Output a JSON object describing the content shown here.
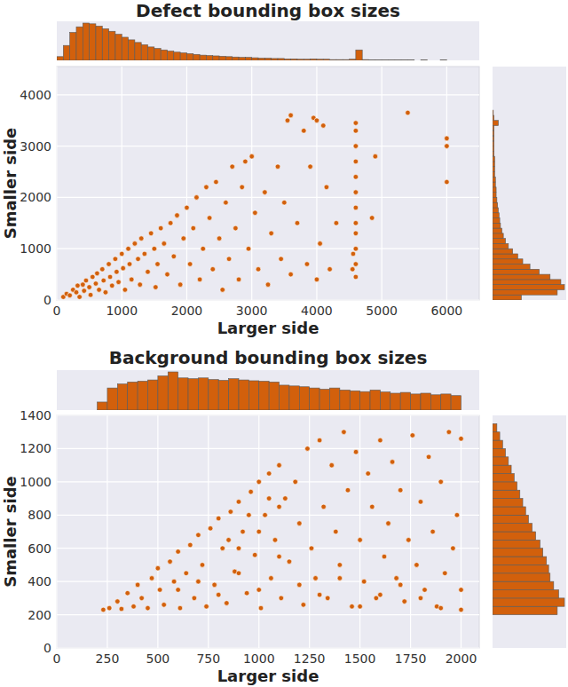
{
  "chart_data": [
    {
      "type": "scatter",
      "title": "Defect bounding box sizes",
      "x_label": "Larger side",
      "y_label": "Smaller side",
      "color": "#d2600c",
      "marker": "circle",
      "grid": true,
      "xlim": [
        0,
        6500
      ],
      "ylim": [
        0,
        4550
      ],
      "xticks": [
        0,
        1000,
        2000,
        3000,
        4000,
        5000,
        6000
      ],
      "yticks": [
        0,
        1000,
        2000,
        3000,
        4000
      ],
      "x": [
        100,
        150,
        200,
        250,
        300,
        320,
        350,
        400,
        420,
        450,
        500,
        520,
        550,
        600,
        620,
        650,
        700,
        720,
        750,
        800,
        820,
        850,
        900,
        920,
        950,
        1000,
        1020,
        1050,
        1100,
        1120,
        1150,
        1200,
        1250,
        1280,
        1300,
        1350,
        1400,
        1450,
        1500,
        1520,
        1550,
        1600,
        1650,
        1700,
        1750,
        1800,
        1850,
        1900,
        1950,
        2000,
        2050,
        2100,
        2150,
        2200,
        2250,
        2300,
        2350,
        2400,
        2450,
        2500,
        2550,
        2600,
        2650,
        2700,
        2750,
        2800,
        2850,
        2900,
        2950,
        3000,
        3050,
        3100,
        3200,
        3250,
        3300,
        3400,
        3450,
        3500,
        3550,
        3600,
        3700,
        3800,
        3850,
        3900,
        3950,
        4000,
        4050,
        4100,
        4150,
        4200,
        4300,
        4600,
        4600,
        4600,
        4600,
        4600,
        4600,
        4600,
        4600,
        4600,
        4600,
        4600,
        4600,
        4550,
        4560,
        4850,
        4900,
        5400,
        6000,
        6000,
        6000,
        3600,
        4000
      ],
      "y": [
        60,
        120,
        90,
        200,
        150,
        280,
        60,
        300,
        180,
        380,
        250,
        100,
        450,
        320,
        520,
        200,
        600,
        380,
        150,
        700,
        450,
        280,
        800,
        550,
        350,
        900,
        620,
        200,
        1000,
        700,
        400,
        1100,
        800,
        300,
        1200,
        900,
        550,
        1300,
        1000,
        250,
        700,
        1400,
        1100,
        500,
        1500,
        850,
        1650,
        300,
        1200,
        1800,
        700,
        1400,
        2000,
        400,
        1000,
        2200,
        1600,
        600,
        2300,
        1200,
        200,
        1900,
        800,
        2600,
        1400,
        400,
        2200,
        2700,
        1000,
        2800,
        1700,
        600,
        2100,
        300,
        1300,
        2600,
        800,
        1900,
        3500,
        500,
        1500,
        3300,
        700,
        2600,
        3550,
        400,
        1100,
        3400,
        2200,
        600,
        1500,
        450,
        700,
        1000,
        1300,
        1500,
        1800,
        2100,
        2400,
        2700,
        3000,
        3300,
        3450,
        600,
        900,
        1600,
        2800,
        3650,
        3150,
        3000,
        2300,
        3600,
        3500
      ],
      "x_hist": {
        "bins": [
          0,
          100,
          200,
          300,
          400,
          500,
          600,
          700,
          800,
          900,
          1000,
          1100,
          1200,
          1300,
          1400,
          1500,
          1600,
          1700,
          1800,
          1900,
          2000,
          2100,
          2200,
          2300,
          2400,
          2500,
          2600,
          2700,
          2800,
          2900,
          3000,
          3100,
          3200,
          3300,
          3400,
          3500,
          3600,
          3700,
          3800,
          3900,
          4000,
          4100,
          4200,
          4300,
          4400,
          4500,
          4600,
          4700,
          4800,
          4900,
          5000,
          5100,
          5200,
          5300,
          5400,
          5500,
          5600,
          5700,
          5800,
          5900,
          6000
        ],
        "counts": [
          10,
          40,
          75,
          90,
          100,
          98,
          92,
          85,
          78,
          70,
          62,
          55,
          48,
          42,
          36,
          32,
          28,
          25,
          22,
          20,
          18,
          16,
          14,
          13,
          12,
          11,
          10,
          9,
          8,
          8,
          7,
          6,
          6,
          5,
          5,
          4,
          4,
          3,
          3,
          4,
          3,
          3,
          2,
          2,
          2,
          3,
          28,
          2,
          1,
          1,
          1,
          1,
          1,
          1,
          1,
          0,
          1,
          0,
          0,
          1
        ]
      },
      "y_hist": {
        "bins": [
          0,
          100,
          200,
          300,
          400,
          500,
          600,
          700,
          800,
          900,
          1000,
          1100,
          1200,
          1300,
          1400,
          1500,
          1600,
          1700,
          1800,
          1900,
          2000,
          2100,
          2200,
          2300,
          2400,
          2500,
          2600,
          2700,
          2800,
          2900,
          3000,
          3100,
          3200,
          3300,
          3400,
          3500,
          3600,
          3700
        ],
        "counts": [
          40,
          90,
          100,
          95,
          80,
          65,
          52,
          42,
          35,
          28,
          22,
          18,
          15,
          13,
          11,
          10,
          9,
          8,
          7,
          6,
          5,
          5,
          4,
          4,
          3,
          3,
          3,
          3,
          2,
          2,
          2,
          2,
          2,
          2,
          8,
          2,
          1
        ]
      }
    },
    {
      "type": "scatter",
      "title": "Background bounding box sizes",
      "x_label": "Larger side",
      "y_label": "Smaller side",
      "color": "#d2600c",
      "marker": "circle",
      "grid": true,
      "xlim": [
        0,
        2090
      ],
      "ylim": [
        0,
        1400
      ],
      "xticks": [
        0,
        250,
        500,
        750,
        1000,
        1250,
        1500,
        1750,
        2000
      ],
      "yticks": [
        0,
        200,
        400,
        600,
        800,
        1000,
        1200,
        1400
      ],
      "x": [
        230,
        260,
        300,
        320,
        350,
        380,
        400,
        420,
        450,
        470,
        500,
        510,
        530,
        560,
        580,
        600,
        610,
        640,
        660,
        680,
        700,
        720,
        740,
        760,
        780,
        800,
        820,
        840,
        860,
        880,
        900,
        920,
        940,
        960,
        980,
        1000,
        1010,
        1030,
        1050,
        1060,
        1080,
        1100,
        1110,
        1130,
        1150,
        1180,
        1200,
        1220,
        1240,
        1260,
        1280,
        1300,
        1320,
        1340,
        1360,
        1380,
        1400,
        1420,
        1440,
        1460,
        1480,
        1500,
        1520,
        1540,
        1560,
        1580,
        1600,
        1620,
        1640,
        1660,
        1680,
        1700,
        1720,
        1740,
        1760,
        1780,
        1800,
        1820,
        1840,
        1860,
        1880,
        1900,
        1920,
        1940,
        1960,
        1980,
        2000,
        2000,
        600,
        700,
        800,
        900,
        1000,
        1100,
        1200,
        1300,
        1400,
        1500,
        1600,
        1700,
        1800,
        1900,
        2000,
        900,
        1000,
        1100,
        850,
        950,
        1050
      ],
      "y": [
        230,
        240,
        280,
        235,
        330,
        250,
        380,
        300,
        240,
        420,
        480,
        350,
        260,
        520,
        400,
        580,
        240,
        450,
        620,
        300,
        680,
        500,
        250,
        720,
        380,
        780,
        600,
        270,
        820,
        460,
        880,
        700,
        330,
        940,
        560,
        1000,
        240,
        800,
        1050,
        420,
        650,
        1100,
        300,
        900,
        520,
        1000,
        750,
        260,
        1200,
        600,
        420,
        1250,
        850,
        300,
        1100,
        700,
        500,
        1300,
        950,
        250,
        1180,
        650,
        400,
        1050,
        850,
        300,
        1250,
        550,
        750,
        1120,
        420,
        950,
        280,
        650,
        1280,
        500,
        880,
        350,
        1150,
        700,
        250,
        1000,
        450,
        1300,
        600,
        800,
        1260,
        350,
        350,
        400,
        320,
        450,
        350,
        550,
        380,
        320,
        420,
        250,
        320,
        380,
        300,
        240,
        230,
        600,
        700,
        850,
        650,
        800,
        900
      ],
      "x_hist": {
        "bins": [
          200,
          250,
          300,
          350,
          400,
          450,
          500,
          550,
          600,
          650,
          700,
          750,
          800,
          850,
          900,
          950,
          1000,
          1050,
          1100,
          1150,
          1200,
          1250,
          1300,
          1350,
          1400,
          1450,
          1500,
          1550,
          1600,
          1650,
          1700,
          1750,
          1800,
          1850,
          1900,
          1950,
          2000
        ],
        "counts": [
          20,
          55,
          65,
          70,
          72,
          75,
          85,
          95,
          80,
          78,
          80,
          76,
          74,
          78,
          75,
          73,
          72,
          70,
          62,
          60,
          58,
          55,
          52,
          55,
          50,
          48,
          46,
          50,
          45,
          42,
          44,
          40,
          42,
          38,
          40,
          36
        ]
      },
      "y_hist": {
        "bins": [
          200,
          250,
          300,
          350,
          400,
          450,
          500,
          550,
          600,
          650,
          700,
          750,
          800,
          850,
          900,
          950,
          1000,
          1050,
          1100,
          1150,
          1200,
          1250,
          1300,
          1350
        ],
        "counts": [
          90,
          100,
          92,
          85,
          80,
          78,
          75,
          70,
          66,
          60,
          55,
          50,
          46,
          42,
          38,
          34,
          30,
          26,
          22,
          18,
          14,
          10,
          6
        ]
      }
    }
  ]
}
